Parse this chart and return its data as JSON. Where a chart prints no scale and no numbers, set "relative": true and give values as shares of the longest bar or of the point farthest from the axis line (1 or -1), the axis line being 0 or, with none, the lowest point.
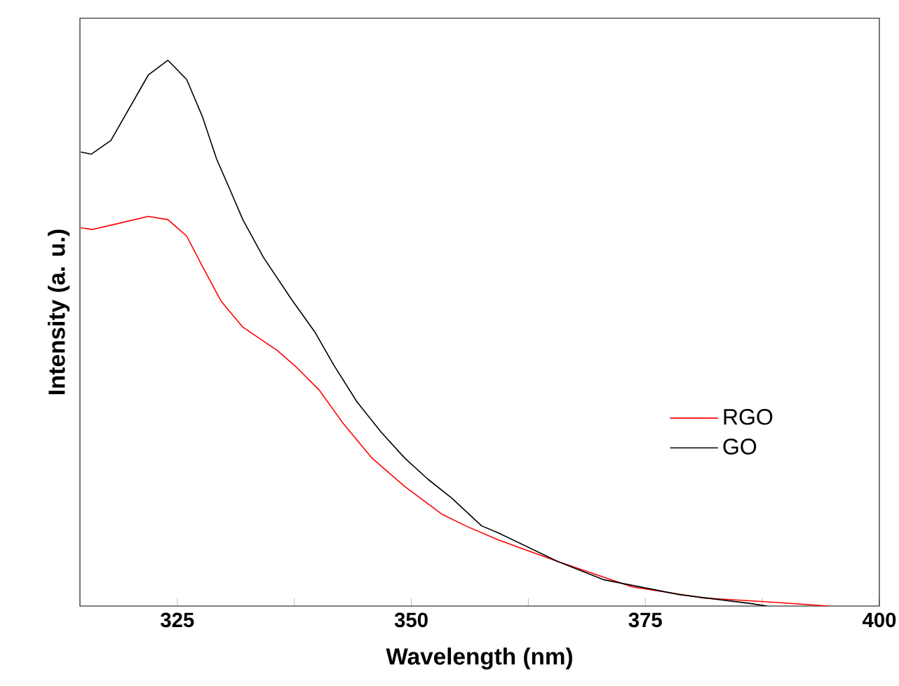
{
  "chart_data": {
    "type": "line",
    "xlabel": "Wavelength (nm)",
    "ylabel": "Intensity (a. u.)",
    "relative": true,
    "xlim": [
      314.6,
      400
    ],
    "xticks": [
      325,
      {
        "value": 337.5,
        "label": null
      },
      350,
      {
        "value": 362.5,
        "label": null
      },
      375,
      {
        "value": 387.5,
        "label": null
      },
      400
    ],
    "legend": "bottom right",
    "grid": false,
    "marker": "none",
    "line_style": "solid",
    "series": [
      {
        "name": "RGO",
        "color": "#ff0000",
        "x": [
          314.7,
          315.9,
          318.2,
          321.9,
          324.0,
          326.0,
          327.7,
          329.7,
          332.0,
          335.7,
          337.7,
          340.2,
          342.7,
          345.8,
          349.3,
          353.3,
          355.8,
          359.3,
          365.6,
          373.6,
          381.1,
          388.6,
          394.6
        ],
        "values": [
          0.693,
          0.69,
          0.699,
          0.714,
          0.708,
          0.678,
          0.622,
          0.558,
          0.511,
          0.468,
          0.438,
          0.395,
          0.335,
          0.271,
          0.219,
          0.168,
          0.147,
          0.121,
          0.082,
          0.035,
          0.015,
          0.007,
          0.0
        ]
      },
      {
        "name": "GO",
        "color": "#000000",
        "x": [
          314.7,
          315.8,
          317.9,
          321.9,
          324.0,
          326.0,
          327.7,
          329.2,
          330.5,
          332.0,
          334.2,
          337.2,
          339.7,
          341.7,
          344.2,
          346.8,
          349.3,
          351.8,
          354.3,
          357.5,
          359.3,
          365.6,
          370.6,
          378.6,
          386.1,
          388.0
        ],
        "values": [
          0.832,
          0.828,
          0.853,
          0.973,
          1.0,
          0.965,
          0.896,
          0.819,
          0.768,
          0.708,
          0.639,
          0.562,
          0.502,
          0.442,
          0.374,
          0.318,
          0.271,
          0.232,
          0.198,
          0.147,
          0.134,
          0.082,
          0.048,
          0.021,
          0.005,
          0.0
        ]
      }
    ]
  }
}
